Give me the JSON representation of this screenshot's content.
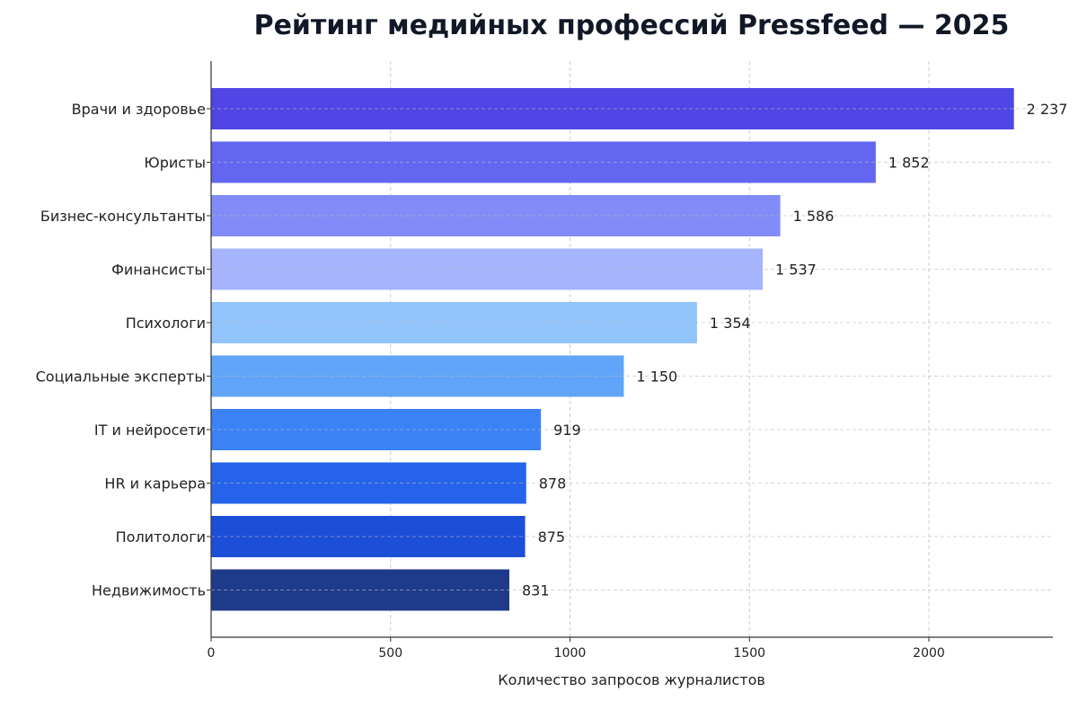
{
  "chart_data": {
    "type": "bar",
    "orientation": "horizontal",
    "title": "Рейтинг медийных профессий Pressfeed — 2025",
    "xlabel": "Количество запросов журналистов",
    "ylabel": "",
    "xlim": [
      0,
      2350
    ],
    "xticks": [
      0,
      500,
      1000,
      1500,
      2000
    ],
    "grid": true,
    "categories": [
      "Врачи и здоровье",
      "Юристы",
      "Бизнес-консультанты",
      "Финансисты",
      "Психологи",
      "Социальные эксперты",
      "IT и нейросети",
      "HR и карьера",
      "Политологи",
      "Недвижимость"
    ],
    "values": [
      2237,
      1852,
      1586,
      1537,
      1354,
      1150,
      919,
      878,
      875,
      831
    ],
    "value_labels": [
      "2 237",
      "1 852",
      "1 586",
      "1 537",
      "1 354",
      "1 150",
      "919",
      "878",
      "875",
      "831"
    ],
    "colors": [
      "#4f46e5",
      "#6366f1",
      "#818cf8",
      "#a5b4fc",
      "#93c5fd",
      "#60a5fa",
      "#3b82f6",
      "#2563eb",
      "#1d4ed8",
      "#1e3a8a"
    ]
  }
}
